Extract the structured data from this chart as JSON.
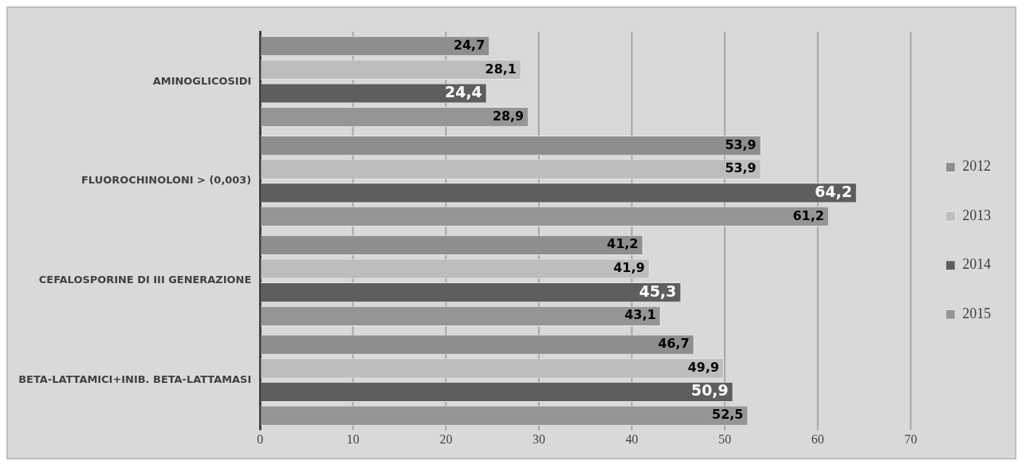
{
  "chart_data": {
    "type": "bar",
    "orientation": "horizontal",
    "categories": [
      "AMINOGLICOSIDI",
      "FLUOROCHINOLONI > (0,003)",
      "CEFALOSPORINE DI III GENERAZIONE",
      "BETA-LATTAMICI+INIB. BETA-LATTAMASI"
    ],
    "series": [
      {
        "name": "2012",
        "color": "#8e8e8e",
        "values": [
          24.7,
          53.9,
          41.2,
          46.7
        ],
        "value_labels": [
          "24,7",
          "53,9",
          "41,2",
          "46,7"
        ]
      },
      {
        "name": "2013",
        "color": "#bdbdbd",
        "values": [
          28.1,
          53.9,
          41.9,
          49.9
        ],
        "value_labels": [
          "28,1",
          "53,9",
          "41,9",
          "49,9"
        ]
      },
      {
        "name": "2014",
        "color": "#5e5e5e",
        "values": [
          24.4,
          64.2,
          45.3,
          50.9
        ],
        "value_labels": [
          "24,4",
          "64,2",
          "45,3",
          "50,9"
        ]
      },
      {
        "name": "2015",
        "color": "#959595",
        "values": [
          28.9,
          61.2,
          43.1,
          52.5
        ],
        "value_labels": [
          "28,9",
          "61,2",
          "43,1",
          "52,5"
        ]
      }
    ],
    "xlim": [
      0,
      70
    ],
    "xticks": [
      0,
      10,
      20,
      30,
      40,
      50,
      60,
      70
    ],
    "grid": "x",
    "legend": "right"
  }
}
